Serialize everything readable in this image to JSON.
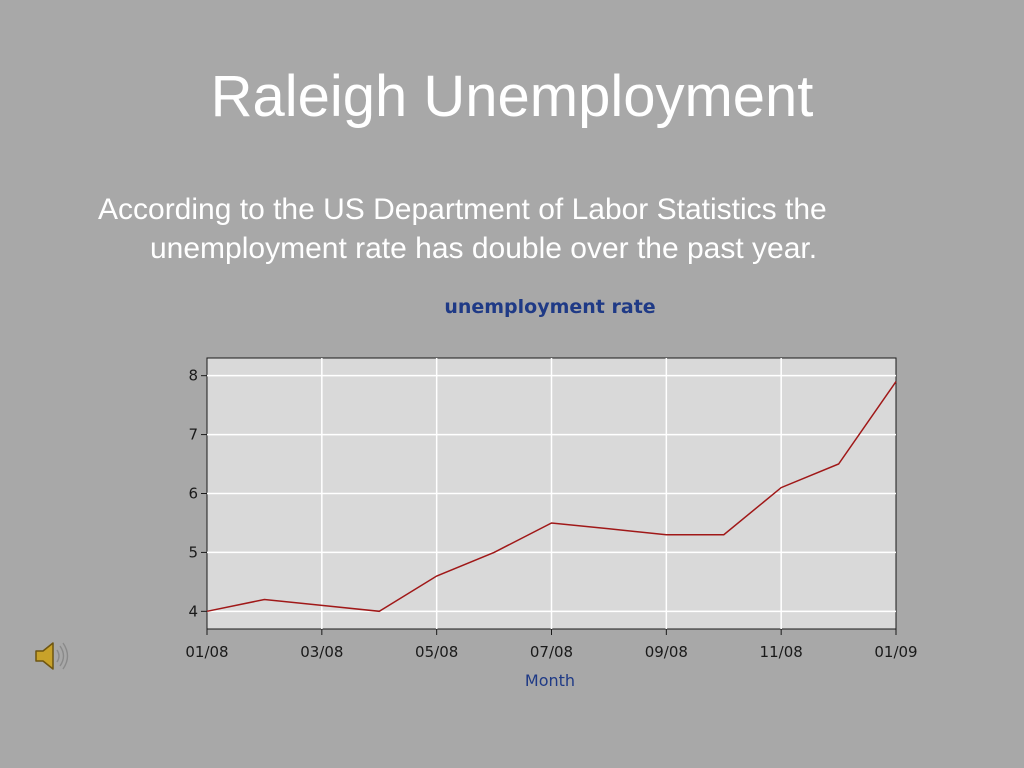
{
  "slide": {
    "title": "Raleigh Unemployment",
    "body": "According to the US Department of Labor Statistics the unemployment rate has double over the past year."
  },
  "audio": {
    "icon": "speaker-icon"
  },
  "colors": {
    "background": "#a8a8a8",
    "plot_background": "#d9d9d9",
    "line": "#a01818",
    "chart_title": "#1f3a86",
    "gridline": "#ffffff"
  },
  "chart_data": {
    "type": "line",
    "title": "unemployment rate",
    "xlabel": "Month",
    "ylabel": "",
    "x": [
      "01/08",
      "02/08",
      "03/08",
      "04/08",
      "05/08",
      "06/08",
      "07/08",
      "08/08",
      "09/08",
      "10/08",
      "11/08",
      "12/08",
      "01/09"
    ],
    "x_tick_labels": [
      "01/08",
      "03/08",
      "05/08",
      "07/08",
      "09/08",
      "11/08",
      "01/09"
    ],
    "y_tick_labels": [
      "4",
      "5",
      "6",
      "7",
      "8"
    ],
    "series": [
      {
        "values": [
          4.0,
          4.2,
          4.1,
          4.0,
          4.6,
          5.0,
          5.5,
          5.4,
          5.3,
          5.3,
          6.1,
          6.5,
          7.9
        ]
      }
    ],
    "ylim": [
      3.7,
      8.3
    ],
    "grid": true,
    "legend": "none"
  }
}
